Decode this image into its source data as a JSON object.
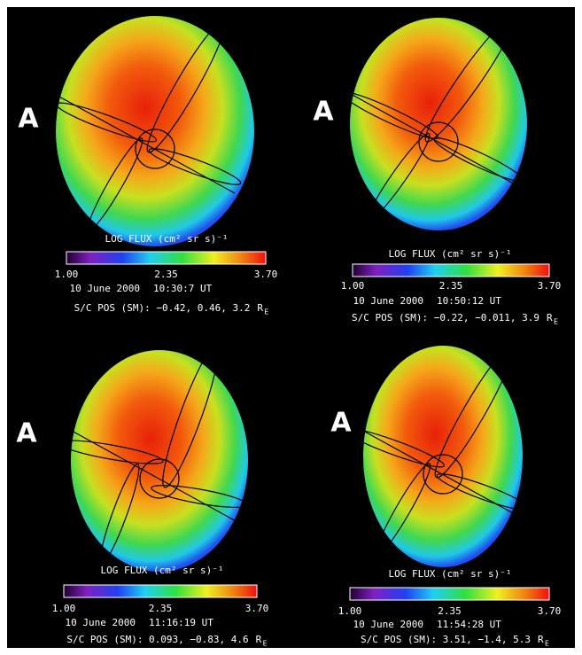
{
  "panels": [
    {
      "label": "A",
      "colorbar_title": "LOG FLUX (cm² sr s)⁻¹",
      "colorbar_ticks": [
        "1.00",
        "2.35",
        "3.70"
      ],
      "date": "10 June 2000",
      "time": "10:30:7 UT",
      "position": "S/C POS (SM): −0.42, 0.46, 3.2",
      "unit": "R",
      "unit_sub": "E"
    },
    {
      "label": "A",
      "colorbar_title": "LOG FLUX (cm² sr s)⁻¹",
      "colorbar_ticks": [
        "1.00",
        "2.35",
        "3.70"
      ],
      "date": "10 June 2000",
      "time": "10:50:12 UT",
      "position": "S/C POS (SM): −0.22, −0.011, 3.9",
      "unit": "R",
      "unit_sub": "E"
    },
    {
      "label": "A",
      "colorbar_title": "LOG FLUX (cm² sr s)⁻¹",
      "colorbar_ticks": [
        "1.00",
        "2.35",
        "3.70"
      ],
      "date": "10 June 2000",
      "time": "11:16:19 UT",
      "position": "S/C POS (SM): 0.093, −0.83, 4.6",
      "unit": "R",
      "unit_sub": "E"
    },
    {
      "label": "A",
      "colorbar_title": "LOG FLUX (cm² sr s)⁻¹",
      "colorbar_ticks": [
        "1.00",
        "2.35",
        "3.70"
      ],
      "date": "10 June 2000",
      "time": "11:54:28 UT",
      "position": "S/C POS (SM): 3.51, −1.4, 5.3",
      "unit": "R",
      "unit_sub": "E"
    }
  ]
}
